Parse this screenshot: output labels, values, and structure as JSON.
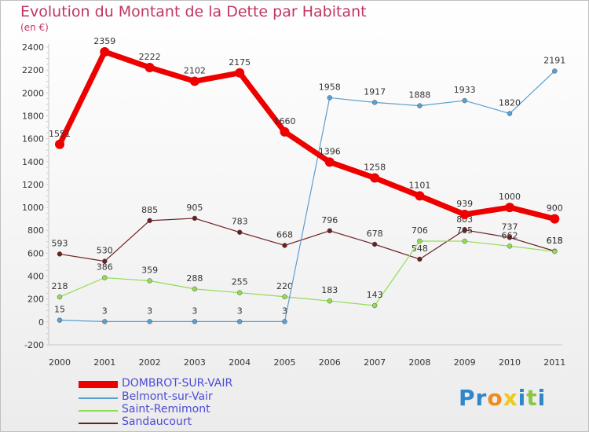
{
  "header": {
    "title": "Evolution du Montant de la Dette par Habitant",
    "unit": "(en €)"
  },
  "chart_data": {
    "type": "line",
    "title": "Evolution du Montant de la Dette par Habitant",
    "ylabel": "(en €)",
    "categories": [
      "2000",
      "2001",
      "2002",
      "2003",
      "2004",
      "2005",
      "2006",
      "2007",
      "2008",
      "2009",
      "2010",
      "2011"
    ],
    "ylim": [
      -200,
      2400
    ],
    "yticks": [
      -200,
      0,
      200,
      400,
      600,
      800,
      1000,
      1200,
      1400,
      1600,
      1800,
      2000,
      2200,
      2400
    ],
    "grid": false,
    "legend_position": "bottom-left",
    "series": [
      {
        "name": "Sandaucourt",
        "color": "#6b1f1f",
        "values": [
          593,
          530,
          885,
          905,
          783,
          668,
          796,
          678,
          548,
          803,
          737,
          618
        ]
      },
      {
        "name": "Saint-Remimont",
        "color": "#90dd50",
        "values": [
          218,
          386,
          359,
          288,
          255,
          220,
          183,
          143,
          706,
          705,
          662,
          615
        ]
      },
      {
        "name": "Belmont-sur-Vair",
        "color": "#5b9fd0",
        "values": [
          15,
          3,
          3,
          3,
          3,
          3,
          1958,
          1917,
          1888,
          1933,
          1820,
          2191
        ]
      },
      {
        "name": "DOMBROT-SUR-VAIR",
        "color": "#ee0000",
        "values": [
          1551,
          2359,
          2222,
          2102,
          2175,
          1660,
          1396,
          1258,
          1101,
          939,
          1000,
          900
        ]
      }
    ]
  },
  "legend": {
    "items": [
      {
        "label": "DOMBROT-SUR-VAIR",
        "color": "#ee0000"
      },
      {
        "label": "Belmont-sur-Vair",
        "color": "#5b9fd0"
      },
      {
        "label": "Saint-Remimont",
        "color": "#90dd50"
      },
      {
        "label": "Sandaucourt",
        "color": "#6b1f1f"
      }
    ]
  },
  "brand": {
    "letters": [
      "P",
      "r",
      "o",
      "x",
      "i",
      "t",
      "i"
    ],
    "colors": [
      "#2f86c8",
      "#2f86c8",
      "#f08a1c",
      "#f0c81c",
      "#2f86c8",
      "#8cc63f",
      "#2f86c8"
    ]
  }
}
